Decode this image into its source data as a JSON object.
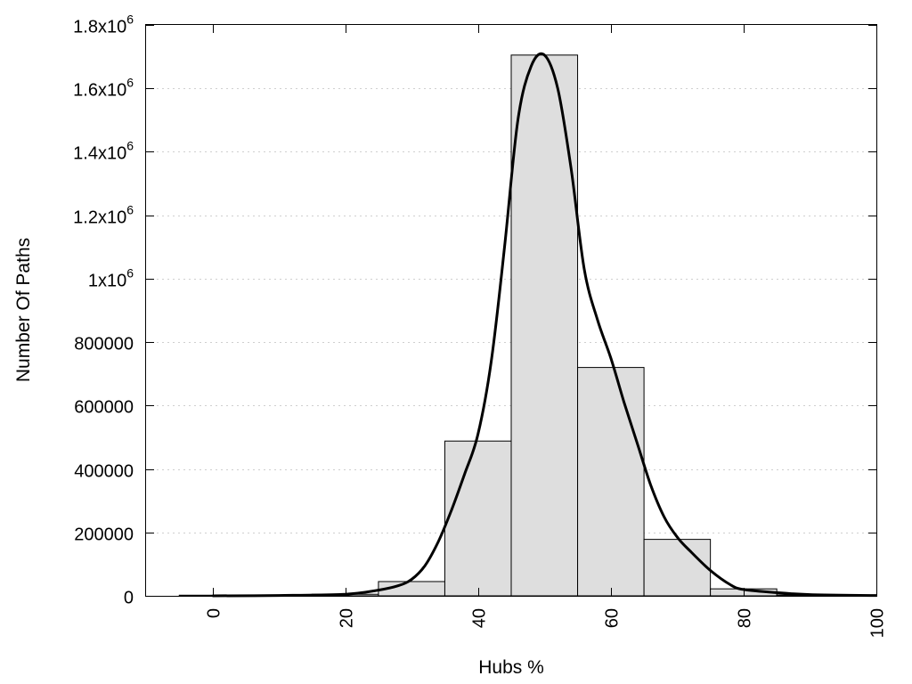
{
  "chart_data": {
    "type": "bar",
    "xlabel": "Hubs %",
    "ylabel": "Number Of Paths",
    "xlim": [
      -10,
      100
    ],
    "ylim": [
      0,
      1800000
    ],
    "grid": true,
    "bar_color": "#dedede",
    "x_ticks": [
      {
        "value": 0,
        "label": "0"
      },
      {
        "value": 20,
        "label": "20"
      },
      {
        "value": 40,
        "label": "40"
      },
      {
        "value": 60,
        "label": "60"
      },
      {
        "value": 80,
        "label": "80"
      },
      {
        "value": 100,
        "label": "100"
      }
    ],
    "y_ticks": [
      {
        "value": 0,
        "label": "0"
      },
      {
        "value": 200000,
        "label": "200000"
      },
      {
        "value": 400000,
        "label": "400000"
      },
      {
        "value": 600000,
        "label": "600000"
      },
      {
        "value": 800000,
        "label": "800000"
      },
      {
        "value": 1000000,
        "label": "1x10",
        "sup": "6"
      },
      {
        "value": 1200000,
        "label": "1.2x10",
        "sup": "6"
      },
      {
        "value": 1400000,
        "label": "1.4x10",
        "sup": "6"
      },
      {
        "value": 1600000,
        "label": "1.6x10",
        "sup": "6"
      },
      {
        "value": 1800000,
        "label": "1.8x10",
        "sup": "6"
      }
    ],
    "bars": [
      {
        "x0": -5,
        "x1": 5,
        "value": 2000
      },
      {
        "x0": 5,
        "x1": 15,
        "value": 1500
      },
      {
        "x0": 15,
        "x1": 25,
        "value": 5000
      },
      {
        "x0": 25,
        "x1": 35,
        "value": 45000
      },
      {
        "x0": 35,
        "x1": 45,
        "value": 488000
      },
      {
        "x0": 45,
        "x1": 55,
        "value": 1705000
      },
      {
        "x0": 55,
        "x1": 65,
        "value": 720000
      },
      {
        "x0": 65,
        "x1": 75,
        "value": 178000
      },
      {
        "x0": 75,
        "x1": 85,
        "value": 22000
      },
      {
        "x0": 85,
        "x1": 95,
        "value": 3000
      }
    ],
    "curve": {
      "x": [
        0,
        10,
        20,
        25,
        28,
        30,
        32,
        34,
        36,
        38,
        40,
        42,
        44,
        46,
        48,
        50,
        52,
        54,
        56,
        58,
        60,
        62,
        64,
        66,
        68,
        70,
        72,
        75,
        78,
        80,
        85,
        90,
        100
      ],
      "y": [
        0,
        1000,
        5000,
        18000,
        32000,
        52000,
        95000,
        170000,
        270000,
        385000,
        510000,
        740000,
        1100000,
        1500000,
        1670000,
        1705000,
        1600000,
        1350000,
        1030000,
        870000,
        750000,
        610000,
        480000,
        350000,
        250000,
        185000,
        140000,
        80000,
        35000,
        20000,
        10000,
        4000,
        1000
      ]
    }
  }
}
